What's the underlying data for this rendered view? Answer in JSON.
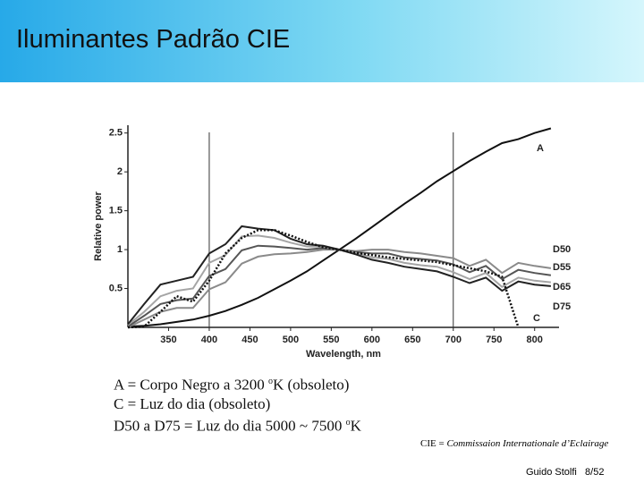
{
  "slide": {
    "title": "Iluminantes Padrão CIE",
    "captions": [
      [
        "A = Corpo Negro a 3200 ",
        "o",
        "K  (obsoleto)"
      ],
      [
        "C = Luz do dia (obsoleto)"
      ],
      [
        "D50 a D75 = Luz do dia  5000 ~ 7500 ",
        "o",
        "K"
      ]
    ],
    "footnote": [
      "CIE = ",
      "Commissaion Internationale d’Eclairage"
    ],
    "author": "Guido Stolfi",
    "page": "8/52"
  },
  "chart_data": {
    "type": "line",
    "x_label": "Wavelength, nm",
    "y_label": "Relative power",
    "x": [
      300,
      320,
      340,
      360,
      380,
      400,
      420,
      440,
      460,
      480,
      500,
      520,
      540,
      560,
      580,
      600,
      620,
      640,
      660,
      680,
      700,
      720,
      740,
      760,
      780,
      800,
      820
    ],
    "series": [
      {
        "name": "A",
        "color": "#111111",
        "dash": false,
        "values": [
          0.01,
          0.02,
          0.04,
          0.07,
          0.1,
          0.15,
          0.21,
          0.29,
          0.38,
          0.49,
          0.6,
          0.72,
          0.86,
          1.0,
          1.14,
          1.29,
          1.44,
          1.59,
          1.73,
          1.88,
          2.01,
          2.14,
          2.26,
          2.37,
          2.42,
          2.5,
          2.56
        ]
      },
      {
        "name": "D50",
        "color": "#8a8a8a",
        "dash": false,
        "values": [
          0.0,
          0.1,
          0.2,
          0.25,
          0.25,
          0.49,
          0.58,
          0.82,
          0.91,
          0.94,
          0.95,
          0.97,
          1.0,
          1.0,
          0.98,
          1.0,
          1.0,
          0.97,
          0.95,
          0.92,
          0.89,
          0.79,
          0.87,
          0.7,
          0.83,
          0.79,
          0.76
        ]
      },
      {
        "name": "D55",
        "color": "#555555",
        "dash": false,
        "values": [
          0.01,
          0.15,
          0.3,
          0.35,
          0.37,
          0.66,
          0.75,
          0.99,
          1.05,
          1.04,
          1.02,
          1.0,
          1.02,
          1.0,
          0.97,
          0.95,
          0.95,
          0.9,
          0.88,
          0.86,
          0.81,
          0.71,
          0.79,
          0.62,
          0.74,
          0.7,
          0.67
        ]
      },
      {
        "name": "D65",
        "color": "#a5a5a5",
        "dash": false,
        "values": [
          0.03,
          0.2,
          0.4,
          0.47,
          0.5,
          0.83,
          0.93,
          1.17,
          1.18,
          1.15,
          1.09,
          1.04,
          1.04,
          1.0,
          0.96,
          0.9,
          0.88,
          0.83,
          0.8,
          0.78,
          0.71,
          0.62,
          0.7,
          0.52,
          0.64,
          0.6,
          0.58
        ]
      },
      {
        "name": "D75",
        "color": "#222222",
        "dash": false,
        "values": [
          0.04,
          0.3,
          0.55,
          0.6,
          0.65,
          0.95,
          1.07,
          1.3,
          1.27,
          1.25,
          1.14,
          1.07,
          1.05,
          1.0,
          0.94,
          0.87,
          0.83,
          0.78,
          0.75,
          0.72,
          0.65,
          0.57,
          0.64,
          0.47,
          0.59,
          0.55,
          0.53
        ]
      },
      {
        "name": "C",
        "color": "#111111",
        "dash": true,
        "values": [
          0.0,
          0.01,
          0.2,
          0.4,
          0.33,
          0.6,
          0.95,
          1.15,
          1.25,
          1.25,
          1.18,
          1.1,
          1.03,
          1.0,
          0.96,
          0.93,
          0.9,
          0.88,
          0.86,
          0.84,
          0.8,
          0.76,
          0.72,
          0.65,
          0.0,
          null,
          null
        ]
      }
    ],
    "xlim": [
      300,
      830
    ],
    "ylim": [
      0,
      2.6
    ],
    "xticks": [
      350,
      400,
      450,
      500,
      550,
      600,
      650,
      700,
      750,
      800
    ],
    "yticks": [
      0.5,
      1,
      1.5,
      2,
      2.5
    ],
    "vlines": [
      400,
      700
    ]
  }
}
